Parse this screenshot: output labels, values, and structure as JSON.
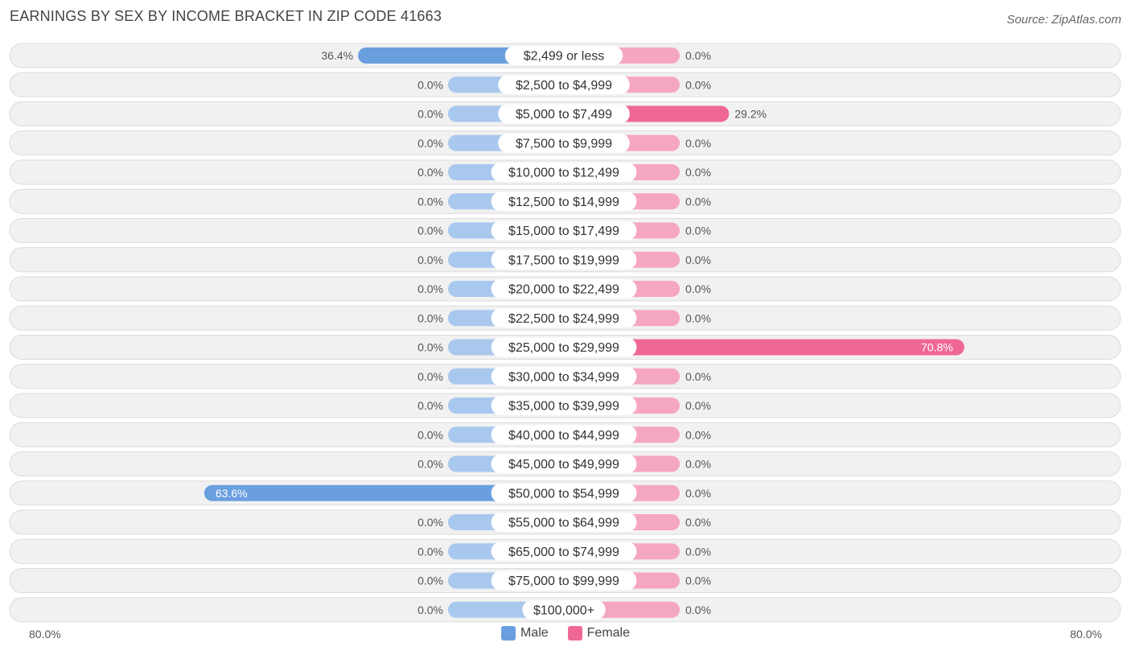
{
  "title": "EARNINGS BY SEX BY INCOME BRACKET IN ZIP CODE 41663",
  "source": "Source: ZipAtlas.com",
  "colors": {
    "male": "#6a9fdf",
    "male_light": "#a9c8ee",
    "female": "#ef6893",
    "female_light": "#f6a7c0",
    "row_bg": "#f1f1f1",
    "row_border": "#dcdcdc"
  },
  "legend": {
    "male": "Male",
    "female": "Female"
  },
  "axis": {
    "left_label": "80.0%",
    "right_label": "80.0%"
  },
  "chart_data": {
    "type": "bar",
    "orientation": "horizontal-diverging",
    "title": "EARNINGS BY SEX BY INCOME BRACKET IN ZIP CODE 41663",
    "xlim": [
      -80,
      80
    ],
    "legend": "bottom-center",
    "categories": [
      "$2,499 or less",
      "$2,500 to $4,999",
      "$5,000 to $7,499",
      "$7,500 to $9,999",
      "$10,000 to $12,499",
      "$12,500 to $14,999",
      "$15,000 to $17,499",
      "$17,500 to $19,999",
      "$20,000 to $22,499",
      "$22,500 to $24,999",
      "$25,000 to $29,999",
      "$30,000 to $34,999",
      "$35,000 to $39,999",
      "$40,000 to $44,999",
      "$45,000 to $49,999",
      "$50,000 to $54,999",
      "$55,000 to $64,999",
      "$65,000 to $74,999",
      "$75,000 to $99,999",
      "$100,000+"
    ],
    "series": [
      {
        "name": "Male",
        "values": [
          36.4,
          0,
          0,
          0,
          0,
          0,
          0,
          0,
          0,
          0,
          0,
          0,
          0,
          0,
          0,
          63.6,
          0,
          0,
          0,
          0
        ],
        "labels": [
          "36.4%",
          "0.0%",
          "0.0%",
          "0.0%",
          "0.0%",
          "0.0%",
          "0.0%",
          "0.0%",
          "0.0%",
          "0.0%",
          "0.0%",
          "0.0%",
          "0.0%",
          "0.0%",
          "0.0%",
          "63.6%",
          "0.0%",
          "0.0%",
          "0.0%",
          "0.0%"
        ]
      },
      {
        "name": "Female",
        "values": [
          0,
          0,
          29.2,
          0,
          0,
          0,
          0,
          0,
          0,
          0,
          70.8,
          0,
          0,
          0,
          0,
          0,
          0,
          0,
          0,
          0
        ],
        "labels": [
          "0.0%",
          "0.0%",
          "29.2%",
          "0.0%",
          "0.0%",
          "0.0%",
          "0.0%",
          "0.0%",
          "0.0%",
          "0.0%",
          "70.8%",
          "0.0%",
          "0.0%",
          "0.0%",
          "0.0%",
          "0.0%",
          "0.0%",
          "0.0%",
          "0.0%",
          "0.0%"
        ]
      }
    ]
  }
}
